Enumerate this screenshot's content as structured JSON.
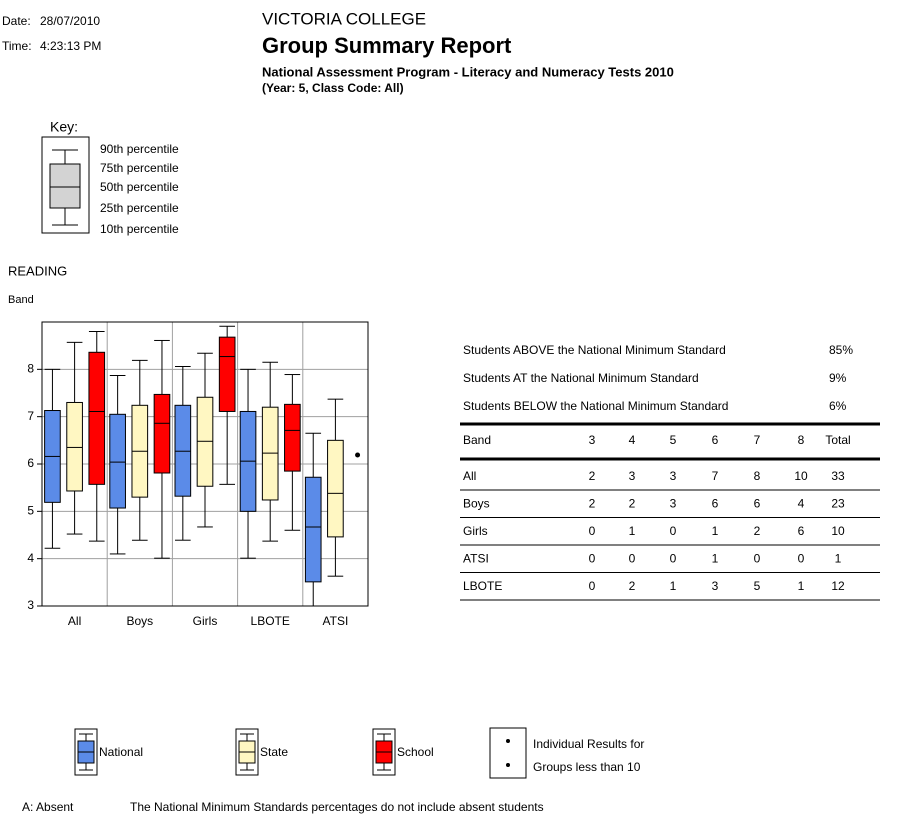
{
  "header": {
    "date_label": "Date:",
    "date": "28/07/2010",
    "time_label": "Time:",
    "time": "4:23:13 PM",
    "school": "VICTORIA COLLEGE",
    "title": "Group Summary Report",
    "subtitle": "National Assessment Program - Literacy and Numeracy Tests 2010",
    "year": "(Year: 5, Class Code: All)"
  },
  "key": {
    "title": "Key:",
    "labels": [
      "90th percentile",
      "75th percentile",
      "50th percentile",
      "25th percentile",
      "10th percentile"
    ]
  },
  "chart_data": {
    "type": "box",
    "title": "READING",
    "y_label": "Band",
    "categories": [
      "All",
      "Boys",
      "Girls",
      "LBOTE",
      "ATSI"
    ],
    "ylim": [
      3,
      9
    ],
    "yticks": [
      3,
      4,
      5,
      6,
      7,
      8
    ],
    "grid": true,
    "series": [
      {
        "name": "National",
        "color": "#5b8be8",
        "p10": [
          4.22,
          4.1,
          4.39,
          4.01,
          3.0
        ],
        "p25": [
          5.19,
          5.07,
          5.32,
          5.0,
          3.51
        ],
        "p50": [
          6.16,
          6.04,
          6.27,
          6.06,
          4.67
        ],
        "p75": [
          7.13,
          7.05,
          7.24,
          7.11,
          5.72
        ],
        "p90": [
          8.0,
          7.87,
          8.06,
          8.0,
          6.65
        ]
      },
      {
        "name": "State",
        "color": "#fff7c2",
        "p10": [
          4.52,
          4.39,
          4.67,
          4.37,
          3.63
        ],
        "p25": [
          5.43,
          5.3,
          5.53,
          5.24,
          4.46
        ],
        "p50": [
          6.35,
          6.27,
          6.48,
          6.23,
          5.38
        ],
        "p75": [
          7.3,
          7.24,
          7.41,
          7.2,
          6.5
        ],
        "p90": [
          8.57,
          8.19,
          8.34,
          8.15,
          7.37
        ]
      },
      {
        "name": "School",
        "color": "#ff0000",
        "p10": [
          4.37,
          4.01,
          5.57,
          4.6,
          null
        ],
        "p25": [
          5.57,
          5.81,
          7.11,
          5.85,
          null
        ],
        "p50": [
          7.11,
          6.86,
          8.27,
          6.71,
          null
        ],
        "p75": [
          8.36,
          7.47,
          8.68,
          7.26,
          null
        ],
        "p90": [
          8.8,
          8.61,
          8.91,
          7.89,
          null
        ],
        "points": [
          null,
          null,
          null,
          null,
          [
            6.19
          ]
        ]
      }
    ],
    "individual_note": [
      "Individual Results for",
      "Groups less than 10"
    ]
  },
  "standards": [
    {
      "label": "Students ABOVE the National Minimum Standard",
      "value": "85%"
    },
    {
      "label": "Students AT the National Minimum Standard",
      "value": "9%"
    },
    {
      "label": "Students BELOW the National Minimum Standard",
      "value": "6%"
    }
  ],
  "table": {
    "header": [
      "Band",
      "3",
      "4",
      "5",
      "6",
      "7",
      "8",
      "Total"
    ],
    "rows": [
      [
        "All",
        2,
        3,
        3,
        7,
        8,
        10,
        33
      ],
      [
        "Boys",
        2,
        2,
        3,
        6,
        6,
        4,
        23
      ],
      [
        "Girls",
        0,
        1,
        0,
        1,
        2,
        6,
        10
      ],
      [
        "ATSI",
        0,
        0,
        0,
        1,
        0,
        0,
        1
      ],
      [
        "LBOTE",
        0,
        2,
        1,
        3,
        5,
        1,
        12
      ]
    ]
  },
  "footer": {
    "absent": "A: Absent",
    "note": "The National Minimum Standards percentages do not include absent students"
  }
}
